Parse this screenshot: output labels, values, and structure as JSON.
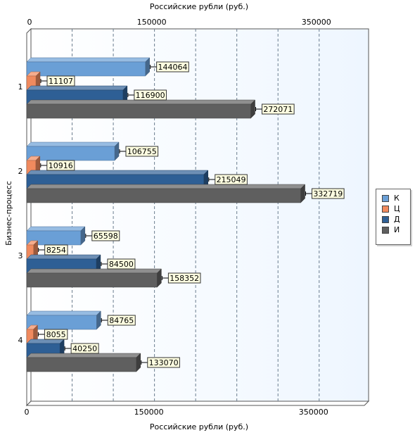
{
  "chart_data": {
    "type": "bar",
    "orientation": "horizontal",
    "title": "",
    "xlabel_top": "Российские рубли (руб.)",
    "xlabel_bottom": "Российские рубли (руб.)",
    "ylabel": "Бизнес-процесс",
    "categories": [
      "1",
      "2",
      "3",
      "4"
    ],
    "xlim": [
      0,
      410000
    ],
    "x_ticks": [
      0,
      150000,
      350000
    ],
    "x_tick_labels": [
      "0",
      "150000",
      "350000"
    ],
    "grid_x": [
      50000,
      100000,
      150000,
      200000,
      250000,
      300000,
      350000
    ],
    "grid": true,
    "legend_position": "right",
    "series": [
      {
        "name": "К",
        "color": "#6a9fd6",
        "values": [
          144064,
          106755,
          65598,
          84765
        ]
      },
      {
        "name": "Ц",
        "color": "#f08a5e",
        "values": [
          11107,
          10916,
          8254,
          8055
        ]
      },
      {
        "name": "Д",
        "color": "#2e5f95",
        "values": [
          116900,
          215049,
          84500,
          40250
        ]
      },
      {
        "name": "И",
        "color": "#5f5f5f",
        "values": [
          272071,
          332719,
          158352,
          133070
        ]
      }
    ]
  }
}
